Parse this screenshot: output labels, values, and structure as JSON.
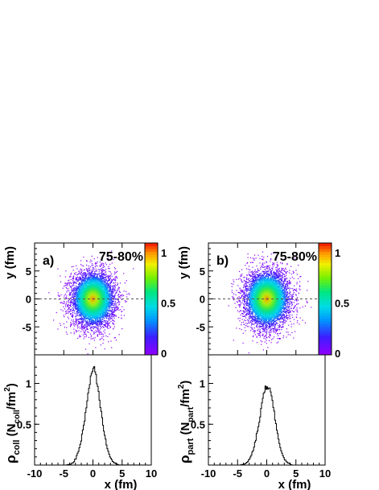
{
  "chart_data": [
    {
      "type": "heatmap",
      "panel_label": "a)",
      "annotation": "75-80%",
      "ylabel": "y  (fm)",
      "xlim": [
        -10,
        10
      ],
      "ylim": [
        -10,
        10
      ],
      "yticks": [
        -5,
        0,
        5
      ],
      "colorbar": {
        "range": [
          0,
          1
        ],
        "ticks": [
          "0",
          "0.5",
          "1"
        ]
      },
      "distribution": {
        "center": [
          0,
          0
        ],
        "sigma_x": 1.8,
        "sigma_y": 2.4
      },
      "dashed_line_y": 0
    },
    {
      "type": "line",
      "xlabel": "x  (fm)",
      "ylabel": "ρ_coll  (N_coll/fm²)",
      "ylabel_parts": {
        "rho": "ρ",
        "rho_sub": "coll",
        "open": "(N",
        "sub": "coll",
        "mid": "/fm",
        "sup": "2",
        "close": ")"
      },
      "xlim": [
        -10,
        10
      ],
      "ylim": [
        0,
        1.35
      ],
      "xticks": [
        -10,
        -5,
        0,
        5,
        10
      ],
      "yticks": [
        0.5,
        1
      ],
      "x": [
        -4.5,
        -4,
        -3.5,
        -3,
        -2.5,
        -2,
        -1.5,
        -1,
        -0.75,
        -0.5,
        -0.25,
        0,
        0.25,
        0.5,
        0.75,
        1,
        1.5,
        2,
        2.5,
        3,
        3.5,
        4,
        4.5
      ],
      "values": [
        0.0,
        0.01,
        0.03,
        0.08,
        0.18,
        0.34,
        0.56,
        0.82,
        0.95,
        1.06,
        1.14,
        1.2,
        1.16,
        1.07,
        0.96,
        0.83,
        0.56,
        0.34,
        0.18,
        0.08,
        0.03,
        0.01,
        0.0
      ]
    },
    {
      "type": "heatmap",
      "panel_label": "b)",
      "annotation": "75-80%",
      "ylabel": "y  (fm)",
      "xlim": [
        -10,
        10
      ],
      "ylim": [
        -10,
        10
      ],
      "yticks": [
        -5,
        0,
        5
      ],
      "colorbar": {
        "range": [
          0,
          1
        ],
        "ticks": [
          "0",
          "0.5",
          "1"
        ]
      },
      "distribution": {
        "center": [
          0,
          0
        ],
        "sigma_x": 1.9,
        "sigma_y": 2.5
      },
      "dashed_line_y": 0
    },
    {
      "type": "line",
      "xlabel": "x  (fm)",
      "ylabel": "ρ_part  (N_part/fm²)",
      "ylabel_parts": {
        "rho": "ρ",
        "rho_sub": "part",
        "open": "(N",
        "sub": "part",
        "mid": "/fm",
        "sup": "2",
        "close": ")"
      },
      "xlim": [
        -10,
        10
      ],
      "ylim": [
        0,
        1.35
      ],
      "xticks": [
        -10,
        -5,
        0,
        5,
        10
      ],
      "yticks": [
        0.5,
        1
      ],
      "x": [
        -4.5,
        -4,
        -3.5,
        -3,
        -2.5,
        -2,
        -1.5,
        -1,
        -0.75,
        -0.5,
        -0.25,
        0,
        0.25,
        0.5,
        0.75,
        1,
        1.5,
        2,
        2.5,
        3,
        3.5,
        4,
        4.5
      ],
      "values": [
        0.0,
        0.01,
        0.03,
        0.07,
        0.16,
        0.3,
        0.48,
        0.7,
        0.82,
        0.9,
        0.95,
        0.96,
        0.95,
        0.92,
        0.86,
        0.74,
        0.5,
        0.3,
        0.16,
        0.07,
        0.03,
        0.01,
        0.0
      ]
    }
  ]
}
